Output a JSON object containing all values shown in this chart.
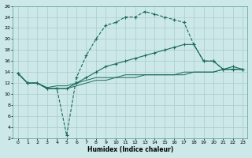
{
  "xlabel": "Humidex (Indice chaleur)",
  "background_color": "#cce8e8",
  "grid_color": "#aacccc",
  "line_color": "#1a6b5a",
  "xlim": [
    -0.5,
    23.5
  ],
  "ylim": [
    2,
    26
  ],
  "xticks": [
    0,
    1,
    2,
    3,
    4,
    5,
    6,
    7,
    8,
    9,
    10,
    11,
    12,
    13,
    14,
    15,
    16,
    17,
    18,
    19,
    20,
    21,
    22,
    23
  ],
  "yticks": [
    2,
    4,
    6,
    8,
    10,
    12,
    14,
    16,
    18,
    20,
    22,
    24,
    26
  ],
  "line1_x": [
    0,
    1,
    2,
    3,
    4,
    5,
    6,
    7,
    8,
    9,
    10,
    11,
    12,
    13,
    14,
    15,
    16,
    17,
    18,
    19,
    20,
    21,
    22,
    23
  ],
  "line1_y": [
    13.8,
    12.0,
    12.0,
    11.0,
    11.0,
    2.5,
    13.0,
    17.0,
    20.0,
    22.5,
    23.0,
    24.0,
    24.0,
    25.0,
    24.5,
    24.0,
    23.5,
    23.0,
    19.0,
    16.0,
    16.0,
    14.5,
    14.5,
    14.5
  ],
  "line2_x": [
    0,
    1,
    2,
    3,
    4,
    5,
    6,
    7,
    8,
    9,
    10,
    11,
    12,
    13,
    14,
    15,
    16,
    17,
    18,
    19,
    20,
    21,
    22,
    23
  ],
  "line2_y": [
    13.8,
    12.0,
    12.0,
    11.0,
    11.0,
    11.0,
    12.0,
    13.0,
    14.0,
    15.0,
    15.5,
    16.0,
    16.5,
    17.0,
    17.5,
    18.0,
    18.5,
    19.0,
    19.0,
    16.0,
    16.0,
    14.5,
    15.0,
    14.5
  ],
  "line3_x": [
    0,
    1,
    2,
    3,
    4,
    5,
    6,
    7,
    8,
    9,
    10,
    11,
    12,
    13,
    14,
    15,
    16,
    17,
    18,
    19,
    20,
    21,
    22,
    23
  ],
  "line3_y": [
    13.8,
    12.0,
    12.0,
    11.2,
    11.5,
    11.5,
    12.0,
    12.5,
    13.0,
    13.0,
    13.0,
    13.5,
    13.5,
    13.5,
    13.5,
    13.5,
    13.5,
    13.5,
    14.0,
    14.0,
    14.0,
    14.5,
    14.5,
    14.5
  ],
  "line4_x": [
    0,
    1,
    2,
    3,
    4,
    5,
    6,
    7,
    8,
    9,
    10,
    11,
    12,
    13,
    14,
    15,
    16,
    17,
    18,
    19,
    20,
    21,
    22,
    23
  ],
  "line4_y": [
    13.8,
    12.0,
    12.0,
    11.0,
    11.0,
    11.0,
    11.5,
    12.0,
    12.5,
    12.5,
    13.0,
    13.0,
    13.0,
    13.5,
    13.5,
    13.5,
    13.5,
    14.0,
    14.0,
    14.0,
    14.0,
    14.5,
    14.5,
    14.5
  ]
}
